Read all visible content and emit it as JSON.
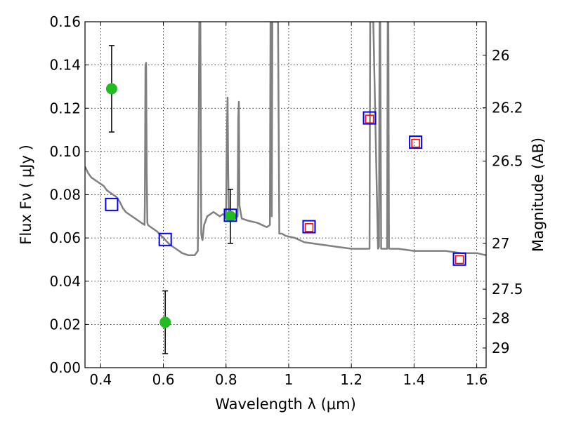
{
  "chart_data": {
    "type": "scatter",
    "xlabel": "Wavelength  λ (μm)",
    "ylabel": "Flux  Fν  ( μJy )",
    "ylabel_right": "Magnitude (AB)",
    "xlim": [
      0.35,
      1.63
    ],
    "ylim": [
      0.0,
      0.16
    ],
    "grid": true,
    "x_ticks": [
      {
        "value": 0.4,
        "label": "0.4"
      },
      {
        "value": 0.6,
        "label": "0.6"
      },
      {
        "value": 0.8,
        "label": "0.8"
      },
      {
        "value": 1.0,
        "label": "1"
      },
      {
        "value": 1.2,
        "label": "1.2"
      },
      {
        "value": 1.4,
        "label": "1.4"
      },
      {
        "value": 1.6,
        "label": "1.6"
      }
    ],
    "y_ticks": [
      {
        "value": 0.0,
        "label": "0.00"
      },
      {
        "value": 0.02,
        "label": "0.02"
      },
      {
        "value": 0.04,
        "label": "0.04"
      },
      {
        "value": 0.06,
        "label": "0.06"
      },
      {
        "value": 0.08,
        "label": "0.08"
      },
      {
        "value": 0.1,
        "label": "0.10"
      },
      {
        "value": 0.12,
        "label": "0.12"
      },
      {
        "value": 0.14,
        "label": "0.14"
      },
      {
        "value": 0.16,
        "label": "0.16"
      }
    ],
    "right_ticks": [
      {
        "flux": 0.1445,
        "label": "26"
      },
      {
        "flux": 0.1202,
        "label": "26.2"
      },
      {
        "flux": 0.0955,
        "label": "26.5"
      },
      {
        "flux": 0.0575,
        "label": "27"
      },
      {
        "flux": 0.0363,
        "label": "27.5"
      },
      {
        "flux": 0.0229,
        "label": "28"
      },
      {
        "flux": 0.0091,
        "label": "29"
      }
    ],
    "model_spectrum": {
      "color": "#808080",
      "x": [
        0.35,
        0.36,
        0.37,
        0.38,
        0.39,
        0.4,
        0.41,
        0.42,
        0.43,
        0.44,
        0.45,
        0.46,
        0.47,
        0.48,
        0.49,
        0.5,
        0.51,
        0.52,
        0.53,
        0.54,
        0.541,
        0.543,
        0.545,
        0.547,
        0.549,
        0.551,
        0.56,
        0.58,
        0.6,
        0.62,
        0.64,
        0.66,
        0.68,
        0.7,
        0.71,
        0.712,
        0.715,
        0.718,
        0.72,
        0.721,
        0.723,
        0.725,
        0.73,
        0.74,
        0.75,
        0.76,
        0.77,
        0.78,
        0.79,
        0.8,
        0.803,
        0.805,
        0.807,
        0.809,
        0.812,
        0.82,
        0.83,
        0.837,
        0.839,
        0.841,
        0.843,
        0.85,
        0.87,
        0.9,
        0.93,
        0.94,
        0.942,
        0.944,
        0.946,
        0.948,
        0.95,
        0.955,
        0.958,
        0.96,
        0.962,
        0.966,
        0.97,
        0.972,
        0.974,
        0.976,
        0.978,
        0.99,
        1.02,
        1.05,
        1.1,
        1.15,
        1.2,
        1.25,
        1.258,
        1.26,
        1.262,
        1.27,
        1.285,
        1.288,
        1.29,
        1.292,
        1.295,
        1.3,
        1.314,
        1.316,
        1.318,
        1.32,
        1.33,
        1.35,
        1.4,
        1.45,
        1.5,
        1.55,
        1.6,
        1.63
      ],
      "y": [
        0.093,
        0.09,
        0.088,
        0.087,
        0.086,
        0.085,
        0.084,
        0.082,
        0.081,
        0.08,
        0.079,
        0.077,
        0.074,
        0.072,
        0.071,
        0.07,
        0.069,
        0.068,
        0.067,
        0.066,
        0.075,
        0.14,
        0.141,
        0.09,
        0.067,
        0.066,
        0.065,
        0.063,
        0.06,
        0.057,
        0.055,
        0.053,
        0.052,
        0.052,
        0.054,
        0.09,
        0.165,
        0.165,
        0.095,
        0.062,
        0.06,
        0.059,
        0.066,
        0.07,
        0.071,
        0.072,
        0.071,
        0.07,
        0.071,
        0.07,
        0.11,
        0.125,
        0.09,
        0.071,
        0.07,
        0.069,
        0.069,
        0.07,
        0.115,
        0.123,
        0.075,
        0.069,
        0.068,
        0.067,
        0.065,
        0.066,
        0.16,
        0.16,
        0.07,
        0.16,
        0.16,
        0.16,
        0.16,
        0.16,
        0.16,
        0.16,
        0.062,
        0.062,
        0.062,
        0.062,
        0.062,
        0.061,
        0.06,
        0.058,
        0.057,
        0.056,
        0.055,
        0.055,
        0.055,
        0.16,
        0.16,
        0.16,
        0.055,
        0.056,
        0.16,
        0.16,
        0.055,
        0.055,
        0.055,
        0.16,
        0.16,
        0.055,
        0.055,
        0.055,
        0.054,
        0.054,
        0.054,
        0.053,
        0.053,
        0.052
      ]
    },
    "series": [
      {
        "marker": "circle",
        "color": "#22bb22",
        "points": [
          {
            "x": 0.435,
            "y": 0.129,
            "err": 0.02
          },
          {
            "x": 0.606,
            "y": 0.021,
            "err": 0.0145
          },
          {
            "x": 0.814,
            "y": 0.07,
            "err": 0.0125
          }
        ]
      },
      {
        "marker": "square-large",
        "color": "#0000ff",
        "points": [
          {
            "x": 0.435,
            "y": 0.0755
          },
          {
            "x": 0.606,
            "y": 0.0593
          },
          {
            "x": 0.814,
            "y": 0.0705
          },
          {
            "x": 1.065,
            "y": 0.0652
          },
          {
            "x": 1.258,
            "y": 0.1155
          },
          {
            "x": 1.405,
            "y": 0.1043
          },
          {
            "x": 1.545,
            "y": 0.0502
          }
        ]
      },
      {
        "marker": "square-small",
        "color": "#ff0000",
        "points": [
          {
            "x": 1.065,
            "y": 0.0648
          },
          {
            "x": 1.258,
            "y": 0.115
          },
          {
            "x": 1.405,
            "y": 0.1038
          },
          {
            "x": 1.545,
            "y": 0.05
          }
        ]
      }
    ]
  }
}
